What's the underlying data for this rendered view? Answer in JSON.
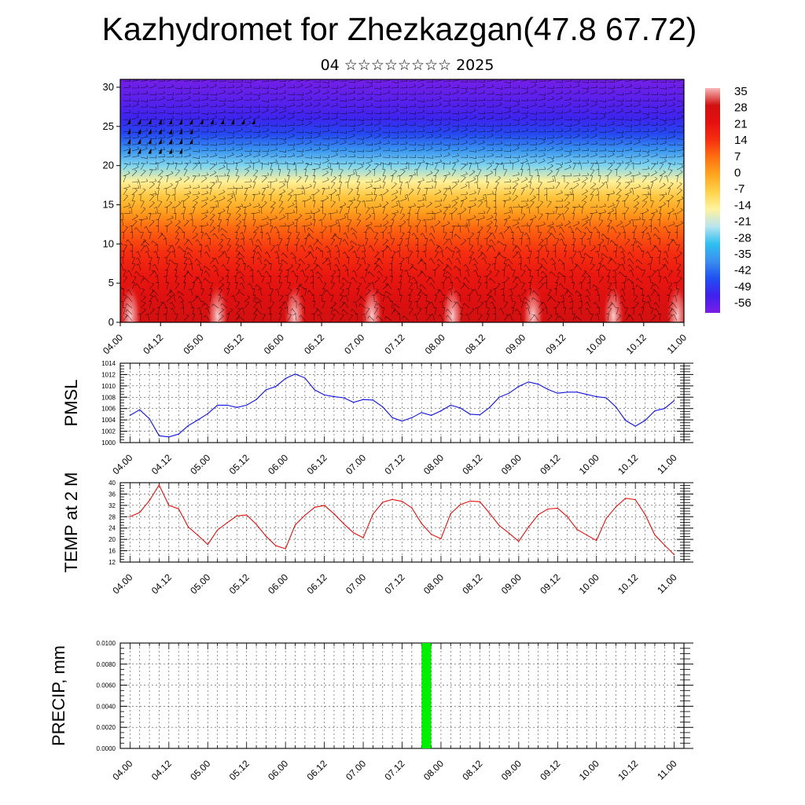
{
  "page": {
    "title": "Kazhydromet for Zhezkazgan(47.8 67.72)",
    "subtitle": "04 ☆☆☆☆☆☆☆☆ 2025"
  },
  "colors": {
    "pmsl_line": "#1010e0",
    "temp_line": "#e01010",
    "precip_bar": "#00ee00",
    "colormap": [
      "#7a1fe6",
      "#4020ee",
      "#2050f0",
      "#3a8ff0",
      "#30c0f0",
      "#b8e4ef",
      "#fff3a0",
      "#ffd24a",
      "#ffa520",
      "#ff7010",
      "#f53010",
      "#e51010",
      "#d01010",
      "#f8b8b8"
    ]
  },
  "x_ticks": [
    "04.00",
    "04.12",
    "05.00",
    "05.12",
    "06.00",
    "06.12",
    "07.00",
    "07.12",
    "08.00",
    "08.12",
    "09.00",
    "09.12",
    "10.00",
    "10.12",
    "11.00"
  ],
  "chart_data": [
    {
      "type": "heatmap",
      "title": "",
      "xlabel": "",
      "ylabel": "",
      "y_ticks": [
        0,
        5,
        10,
        15,
        20,
        25,
        30
      ],
      "ylim": [
        0,
        31
      ],
      "x_range": [
        0,
        168
      ],
      "colorbar_labels": [
        "35",
        "28",
        "21",
        "14",
        "7",
        "0",
        "-7",
        "-14",
        "-21",
        "-28",
        "-35",
        "-42",
        "-49",
        "-56"
      ],
      "clim": [
        -63,
        42
      ],
      "vertical_profile": [
        {
          "level": 0,
          "value": 33
        },
        {
          "level": 3,
          "value": 29
        },
        {
          "level": 6,
          "value": 24
        },
        {
          "level": 9,
          "value": 18
        },
        {
          "level": 12,
          "value": 11
        },
        {
          "level": 14,
          "value": 3
        },
        {
          "level": 16,
          "value": -4
        },
        {
          "level": 18,
          "value": -14
        },
        {
          "level": 20,
          "value": -26
        },
        {
          "level": 22,
          "value": -38
        },
        {
          "level": 24,
          "value": -48
        },
        {
          "level": 26,
          "value": -54
        },
        {
          "level": 28,
          "value": -58
        },
        {
          "level": 31,
          "value": -62
        }
      ],
      "surface_maxima_hours": [
        3,
        29,
        52,
        75,
        99,
        123,
        147,
        166
      ]
    },
    {
      "type": "line",
      "ylabel": "PMSL",
      "ylim": [
        1000,
        1014
      ],
      "y_ticks": [
        "1000",
        "1002",
        "1004",
        "1006",
        "1008",
        "1010",
        "1012",
        "1014"
      ],
      "xlim": [
        -3,
        171
      ],
      "series": [
        {
          "x": [
            0,
            3,
            6,
            9,
            12,
            15,
            18,
            21,
            24,
            27,
            30,
            33,
            36,
            39,
            42,
            45,
            48,
            51,
            54,
            57,
            60,
            63,
            66,
            69,
            72,
            75,
            78,
            81,
            84,
            87,
            90,
            93,
            96,
            99,
            102,
            105,
            108,
            111,
            114,
            117,
            120,
            123,
            126,
            129,
            132,
            135,
            138,
            141,
            144,
            147,
            150,
            153,
            156,
            159,
            162,
            165,
            168
          ],
          "values": [
            1004.8,
            1005.8,
            1004.2,
            1001.2,
            1001.0,
            1001.5,
            1003.0,
            1004.0,
            1005.1,
            1006.6,
            1006.6,
            1006.2,
            1006.6,
            1007.6,
            1009.3,
            1009.9,
            1011.3,
            1012.1,
            1011.4,
            1009.3,
            1008.4,
            1008.1,
            1007.9,
            1007.1,
            1007.6,
            1007.5,
            1006.3,
            1004.4,
            1003.8,
            1004.4,
            1005.3,
            1004.8,
            1005.6,
            1006.6,
            1006.1,
            1005.0,
            1004.9,
            1006.2,
            1008.0,
            1008.7,
            1009.9,
            1010.7,
            1010.3,
            1009.4,
            1008.7,
            1008.9,
            1008.9,
            1008.5,
            1008.1,
            1007.9,
            1006.3,
            1003.9,
            1002.9,
            1003.9,
            1005.6,
            1006.0,
            1007.4
          ]
        }
      ]
    },
    {
      "type": "line",
      "ylabel": "TEMP at 2 M",
      "ylim": [
        12,
        40
      ],
      "y_ticks": [
        "12",
        "16",
        "20",
        "24",
        "28",
        "32",
        "36",
        "40"
      ],
      "xlim": [
        -3,
        171
      ],
      "series": [
        {
          "x": [
            0,
            3,
            6,
            9,
            12,
            15,
            18,
            21,
            24,
            27,
            30,
            33,
            36,
            39,
            42,
            45,
            48,
            51,
            54,
            57,
            60,
            63,
            66,
            69,
            72,
            75,
            78,
            81,
            84,
            87,
            90,
            93,
            96,
            99,
            102,
            105,
            108,
            111,
            114,
            117,
            120,
            123,
            126,
            129,
            132,
            135,
            138,
            141,
            144,
            147,
            150,
            153,
            156,
            159,
            162,
            165,
            168
          ],
          "values": [
            28.0,
            29.5,
            33.7,
            39.2,
            32.0,
            30.8,
            24.4,
            21.4,
            18.2,
            23.3,
            25.9,
            28.3,
            28.6,
            25.3,
            21.1,
            17.8,
            16.7,
            25.1,
            28.5,
            31.3,
            32.0,
            29.0,
            25.5,
            22.3,
            20.6,
            28.9,
            33.1,
            34.1,
            33.4,
            31.1,
            25.6,
            21.8,
            20.2,
            29.1,
            32.3,
            33.5,
            33.3,
            29.2,
            24.9,
            22.2,
            19.3,
            24.3,
            28.7,
            30.7,
            31.0,
            28.0,
            23.5,
            21.5,
            19.6,
            27.4,
            31.5,
            34.5,
            34.0,
            28.8,
            21.6,
            18.0,
            14.6
          ]
        }
      ]
    },
    {
      "type": "bar",
      "ylabel": "PRECIP, mm",
      "ylim": [
        0,
        0.01
      ],
      "y_ticks": [
        "0.0000",
        "0.0020",
        "0.0040",
        "0.0060",
        "0.0080",
        "0.0100"
      ],
      "xlim": [
        -3,
        171
      ],
      "bars": [
        {
          "x_start": 90,
          "x_end": 93,
          "value": 0.01
        }
      ]
    }
  ]
}
